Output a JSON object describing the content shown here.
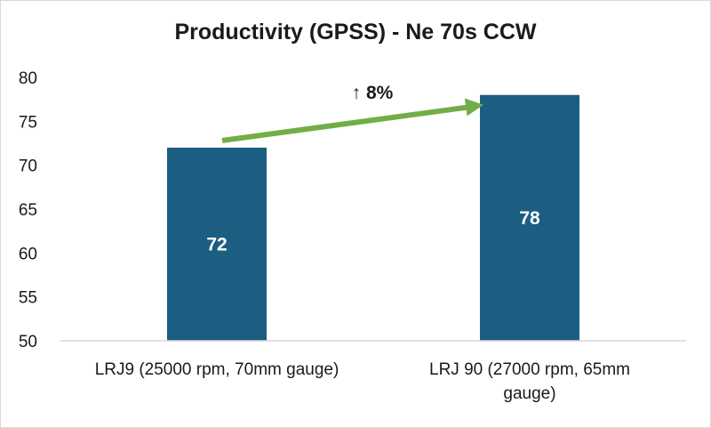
{
  "chart_data": {
    "type": "bar",
    "title": "Productivity (GPSS) - Ne 70s CCW",
    "categories": [
      [
        "LRJ9 (25000 rpm, 70mm gauge)"
      ],
      [
        "LRJ 90 (27000 rpm, 65mm",
        "gauge)"
      ]
    ],
    "values": [
      72,
      78
    ],
    "ylim": [
      50,
      80
    ],
    "yticks": [
      50,
      55,
      60,
      65,
      70,
      75,
      80
    ],
    "xlabel": "",
    "ylabel": "",
    "grid": false,
    "data_labels": true,
    "annotation": {
      "text": "↑ 8%",
      "arrow_from": 0,
      "arrow_to": 1
    },
    "colors": {
      "bar": "#1b5e82",
      "arrow": "#72ae48",
      "axis": "#d9d9d9"
    }
  }
}
